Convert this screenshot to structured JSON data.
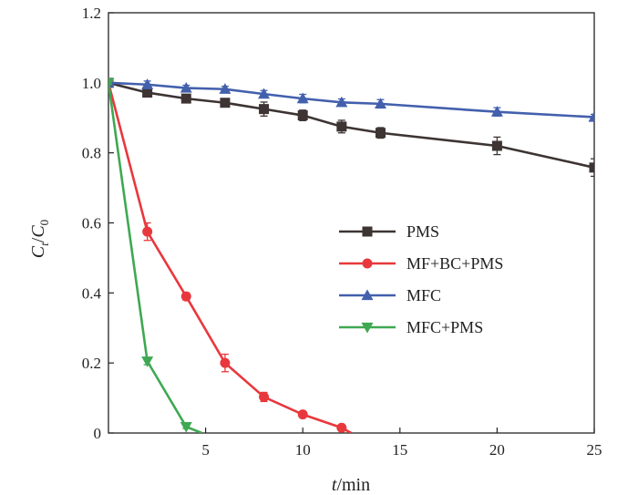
{
  "chart_data": {
    "type": "line",
    "title": "",
    "xlabel_italic": "t",
    "xlabel_rest": "/min",
    "ylabel_num": "C",
    "ylabel_num_sub": "t",
    "ylabel_den": "C",
    "ylabel_den_sub": "0",
    "xlim": [
      0,
      25
    ],
    "ylim": [
      0,
      1.2
    ],
    "xticks": [
      5,
      10,
      15,
      20,
      25
    ],
    "xtick_labels": [
      "5",
      "10",
      "15",
      "20",
      "25"
    ],
    "yticks": [
      0,
      0.2,
      0.4,
      0.6,
      0.8,
      1.0,
      1.2
    ],
    "ytick_labels": [
      "0",
      "0.2",
      "0.4",
      "0.6",
      "0.8",
      "1.0",
      "1.2"
    ],
    "legend_position": "center-right",
    "grid": false,
    "series": [
      {
        "name": "PMS",
        "color": "#3d3433",
        "marker": "square",
        "x": [
          0,
          2,
          4,
          6,
          8,
          10,
          12,
          14,
          20,
          25
        ],
        "y": [
          1.0,
          0.972,
          0.955,
          0.943,
          0.925,
          0.907,
          0.875,
          0.857,
          0.82,
          0.758
        ],
        "err": [
          0.005,
          0.01,
          0.01,
          0.01,
          0.02,
          0.015,
          0.018,
          0.015,
          0.025,
          0.025
        ]
      },
      {
        "name": "MF+BC+PMS",
        "color": "#e8383d",
        "marker": "circle",
        "x": [
          0,
          2,
          4,
          6,
          8,
          10,
          12,
          12.5
        ],
        "y": [
          1.0,
          0.575,
          0.39,
          0.2,
          0.103,
          0.053,
          0.015,
          0.0
        ],
        "err": [
          0.005,
          0.025,
          0.01,
          0.025,
          0.013,
          0.008,
          0.005,
          0
        ]
      },
      {
        "name": "MFC",
        "color": "#4360ad",
        "marker": "triangle-up",
        "x": [
          0,
          2,
          4,
          6,
          8,
          10,
          12,
          14,
          20,
          25
        ],
        "y": [
          1.0,
          0.995,
          0.985,
          0.982,
          0.968,
          0.955,
          0.944,
          0.94,
          0.917,
          0.902
        ],
        "err": [
          0.005,
          0.01,
          0.008,
          0.008,
          0.01,
          0.012,
          0.01,
          0.012,
          0.012,
          0.008
        ]
      },
      {
        "name": "MFC+PMS",
        "color": "#3fa852",
        "marker": "triangle-down",
        "x": [
          0,
          2,
          4,
          4.8
        ],
        "y": [
          1.0,
          0.205,
          0.018,
          0.0
        ],
        "err": [
          0.005,
          0.01,
          0.005,
          0
        ]
      }
    ]
  }
}
